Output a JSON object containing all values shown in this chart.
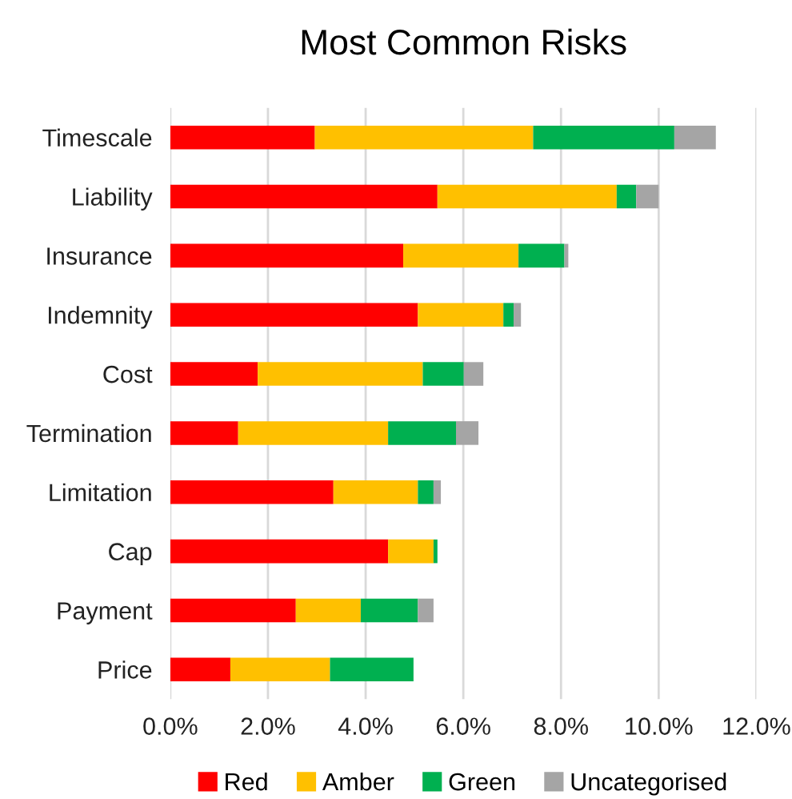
{
  "chart_data": {
    "type": "bar",
    "orientation": "horizontal",
    "stacked": true,
    "title": "Most Common Risks",
    "categories": [
      "Timescale",
      "Liability",
      "Insurance",
      "Indemnity",
      "Cost",
      "Termination",
      "Limitation",
      "Cap",
      "Payment",
      "Price"
    ],
    "series": [
      {
        "name": "Red",
        "color": "#ff0000",
        "values": [
          2.96,
          5.47,
          4.77,
          5.07,
          1.79,
          1.39,
          3.34,
          4.46,
          2.57,
          1.23
        ]
      },
      {
        "name": "Amber",
        "color": "#ffc000",
        "values": [
          4.47,
          3.67,
          2.36,
          1.75,
          3.38,
          3.07,
          1.73,
          0.93,
          1.33,
          2.04
        ]
      },
      {
        "name": "Green",
        "color": "#00b050",
        "values": [
          2.89,
          0.4,
          0.94,
          0.21,
          0.84,
          1.39,
          0.32,
          0.08,
          1.17,
          1.71
        ]
      },
      {
        "name": "Uncategorised",
        "color": "#a5a5a5",
        "values": [
          0.85,
          0.46,
          0.08,
          0.15,
          0.4,
          0.46,
          0.15,
          0,
          0.32,
          0
        ]
      }
    ],
    "xlim": [
      0,
      12
    ],
    "xticks": [
      {
        "value": 0,
        "label": "0.0%"
      },
      {
        "value": 2,
        "label": "2.0%"
      },
      {
        "value": 4,
        "label": "4.0%"
      },
      {
        "value": 6,
        "label": "6.0%"
      },
      {
        "value": 8,
        "label": "8.0%"
      },
      {
        "value": 10,
        "label": "10.0%"
      },
      {
        "value": 12,
        "label": "12.0%"
      }
    ],
    "grid": "x",
    "legend": "bottom"
  }
}
